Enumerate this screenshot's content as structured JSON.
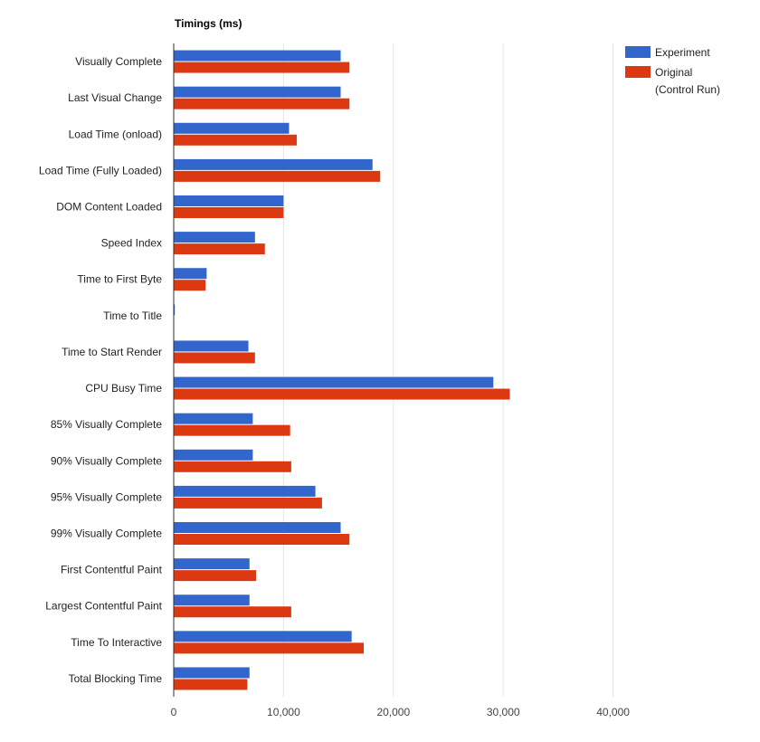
{
  "chart_data": {
    "type": "bar",
    "orientation": "horizontal",
    "title": "Timings (ms)",
    "categories": [
      "Visually Complete",
      "Last Visual Change",
      "Load Time (onload)",
      "Load Time (Fully Loaded)",
      "DOM Content Loaded",
      "Speed Index",
      "Time to First Byte",
      "Time to Title",
      "Time to Start Render",
      "CPU Busy Time",
      "85% Visually Complete",
      "90% Visually Complete",
      "95% Visually Complete",
      "99% Visually Complete",
      "First Contentful Paint",
      "Largest Contentful Paint",
      "Time To Interactive",
      "Total Blocking Time"
    ],
    "series": [
      {
        "name": "Experiment",
        "color": "#3366cc",
        "values": [
          15200,
          15200,
          10500,
          18100,
          10000,
          7400,
          3000,
          100,
          6800,
          29100,
          7200,
          7200,
          12900,
          15200,
          6900,
          6900,
          16200,
          6900
        ]
      },
      {
        "name": "Original\n(Control Run)",
        "color": "#dc3912",
        "values": [
          16000,
          16000,
          11200,
          18800,
          10000,
          8300,
          2900,
          0,
          7400,
          30600,
          10600,
          10700,
          13500,
          16000,
          7500,
          10700,
          17300,
          6700
        ]
      }
    ],
    "xlim": [
      0,
      50000
    ],
    "xticks": [
      0,
      10000,
      20000,
      30000,
      40000
    ],
    "xtick_labels": [
      "0",
      "10,000",
      "20,000",
      "30,000",
      "40,000"
    ],
    "grid": true,
    "legend_position": "top-right"
  }
}
